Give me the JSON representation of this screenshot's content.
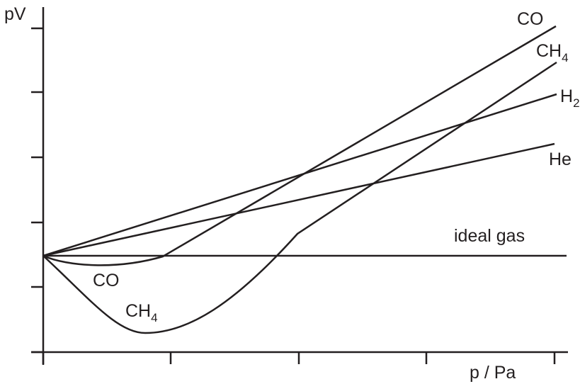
{
  "chart_data": {
    "type": "line",
    "title": "",
    "xlabel": "p / Pa",
    "ylabel": "pV",
    "grid": false,
    "legend": "none",
    "axis_ticks_labeled": false,
    "series": [
      {
        "name": "ideal gas",
        "shape": "horizontal line at the common intercept"
      },
      {
        "name": "He",
        "shape": "straight line rising from the intercept with the smallest slope"
      },
      {
        "name": "H2",
        "shape": "straight line rising from the intercept with a larger slope than He"
      },
      {
        "name": "CO",
        "shape": "dips slightly below the ideal line, then rises steeply"
      },
      {
        "name": "CH4",
        "shape": "deep minimum below the ideal line, then rises most steeply"
      }
    ],
    "curve_labels": [
      {
        "series": "CO",
        "text": "CO",
        "sub": ""
      },
      {
        "series": "CH4",
        "text": "CH",
        "sub": "4"
      },
      {
        "series": "H2",
        "text": "H",
        "sub": "2"
      },
      {
        "series": "He",
        "text": "He",
        "sub": ""
      },
      {
        "series": "ideal gas",
        "text": "ideal gas",
        "sub": ""
      },
      {
        "series": "CO",
        "text": "CO",
        "sub": ""
      },
      {
        "series": "CH4",
        "text": "CH",
        "sub": "4"
      }
    ],
    "axis_color": "#231f20",
    "line_color": "#231f20"
  }
}
